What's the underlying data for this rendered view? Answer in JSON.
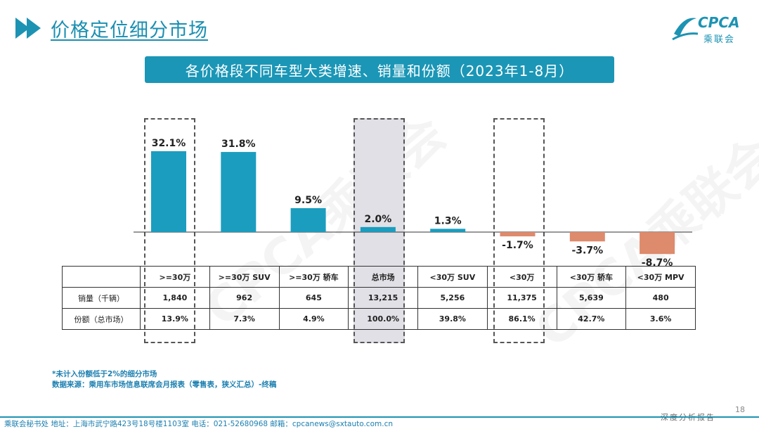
{
  "header": {
    "title": "价格定位细分市场"
  },
  "logo": {
    "text": "CPCA",
    "sub": "乘联会"
  },
  "subtitle": "各价格段不同车型大类增速、销量和份额（2023年1-8月）",
  "watermark": "CPCA乘联会",
  "chart_data": {
    "type": "bar",
    "categories": [
      ">=30万",
      ">=30万 SUV",
      ">=30万 轿车",
      "总市场",
      "<30万 SUV",
      "<30万",
      "<30万 轿车",
      "<30万 MPV"
    ],
    "values": [
      32.1,
      31.8,
      9.5,
      2.0,
      1.3,
      -1.7,
      -3.7,
      -8.7
    ],
    "value_labels": [
      "32.1%",
      "31.8%",
      "9.5%",
      "2.0%",
      "1.3%",
      "-1.7%",
      "-3.7%",
      "-8.7%"
    ],
    "colors": {
      "positive": "#1b9dbf",
      "negative": "#de8a6c"
    },
    "highlighted": [
      ">=30万",
      "总市场",
      "<30万"
    ]
  },
  "table": {
    "headers": [
      ">=30万",
      ">=30万 SUV",
      ">=30万 轿车",
      "总市场",
      "<30万 SUV",
      "<30万",
      "<30万 轿车",
      "<30万 MPV"
    ],
    "rows": [
      {
        "label": "销量（千辆）",
        "values": [
          "1,840",
          "962",
          "645",
          "13,215",
          "5,256",
          "11,375",
          "5,639",
          "480"
        ]
      },
      {
        "label": "份额（总市场）",
        "values": [
          "13.9%",
          "7.3%",
          "4.9%",
          "100.0%",
          "39.8%",
          "86.1%",
          "42.7%",
          "3.6%"
        ]
      }
    ]
  },
  "notes": [
    "*未计入份额低于2%的细分市场",
    "数据来源：乘用车市场信息联席会月报表（零售表，狭义汇总）-终稿"
  ],
  "footer": {
    "left": "乘联会秘书处   地址：上海市武宁路423号18号楼1103室  电话：021-52680968   邮箱：cpcanews@sxtauto.com.cn",
    "right": "深度分析报告",
    "page": "18"
  }
}
